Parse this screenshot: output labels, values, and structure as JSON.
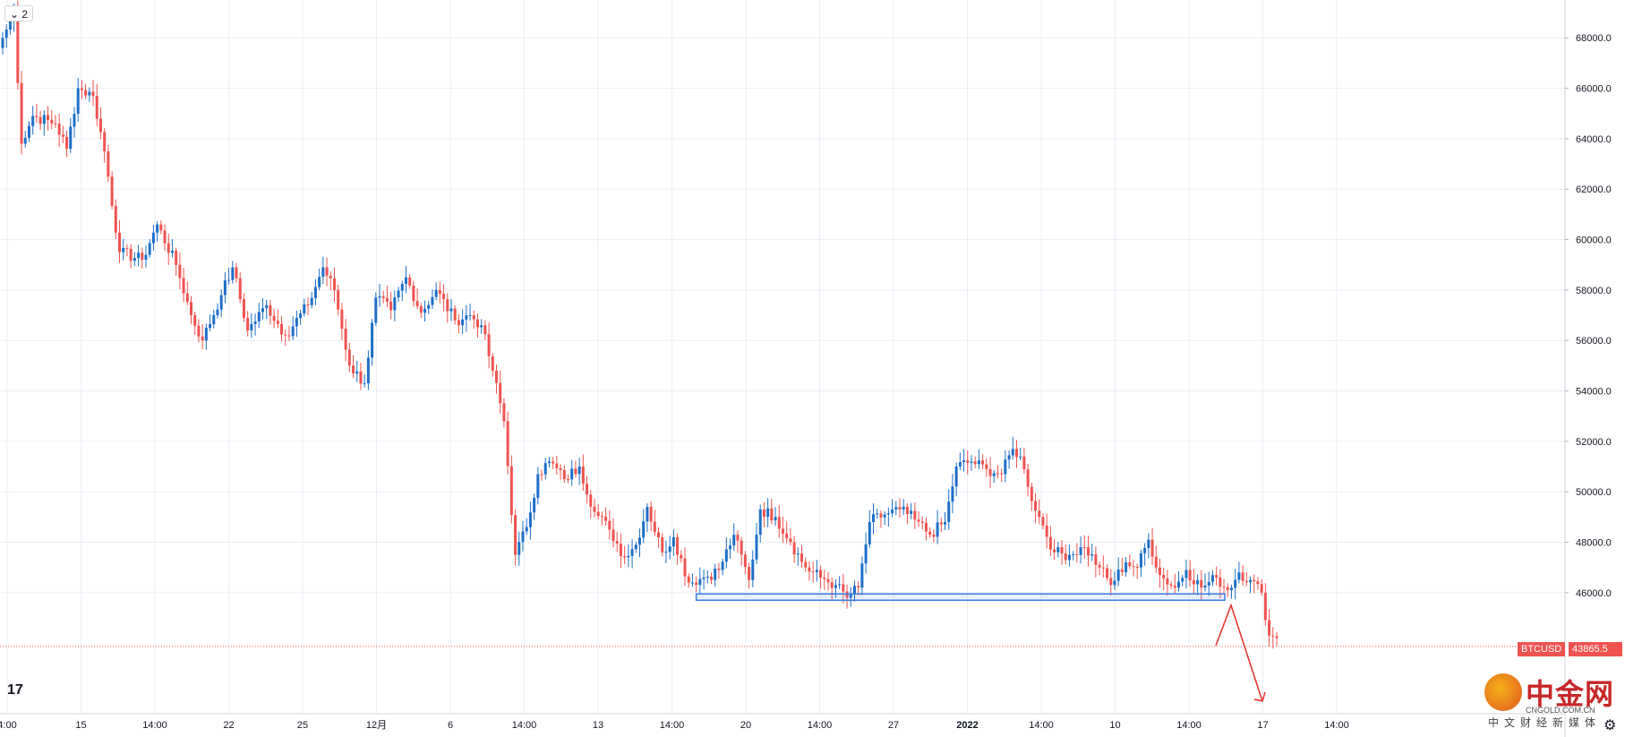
{
  "interval": {
    "label": "2",
    "icon": "chevron-down-icon"
  },
  "symbol_badge": {
    "label": "BTCUSD",
    "price": "43865.5"
  },
  "logo": {
    "text": "17",
    "name": "tradingview-logo-icon"
  },
  "watermark": {
    "main": "中金网",
    "sub": "CNGOLD.COM.CN",
    "sub2": "中文财经新媒体"
  },
  "colors": {
    "up": "#1e6fc8",
    "down": "#ef5350",
    "grid": "#e9eff6",
    "support": "#3b7ddd",
    "arrow": "#e53935"
  },
  "chart_data": {
    "type": "candlestick",
    "symbol": "BTCUSD",
    "last_price": 43865.5,
    "y_ticks": [
      "68000.0",
      "66000.0",
      "64000.0",
      "62000.0",
      "60000.0",
      "58000.0",
      "56000.0",
      "54000.0",
      "52000.0",
      "50000.0",
      "48000.0",
      "46000.0"
    ],
    "ylim": [
      41200,
      69500
    ],
    "x_ticks": [
      "4:00",
      "15",
      "14:00",
      "22",
      "25",
      "12月",
      "6",
      "14:00",
      "13",
      "14:00",
      "20",
      "14:00",
      "27",
      "2022",
      "14:00",
      "10",
      "14:00",
      "17",
      "14:00"
    ],
    "support_zone": [
      45700,
      45950
    ],
    "projection": [
      43900,
      45500,
      41700
    ],
    "anchors": [
      [
        0,
        68000
      ],
      [
        3,
        69000
      ],
      [
        5,
        63800
      ],
      [
        8,
        64900
      ],
      [
        14,
        64600
      ],
      [
        17,
        63600
      ],
      [
        20,
        66000
      ],
      [
        24,
        65700
      ],
      [
        27,
        63500
      ],
      [
        31,
        59500
      ],
      [
        37,
        59200
      ],
      [
        41,
        60600
      ],
      [
        46,
        59000
      ],
      [
        50,
        57000
      ],
      [
        53,
        56000
      ],
      [
        58,
        57800
      ],
      [
        61,
        58900
      ],
      [
        65,
        56400
      ],
      [
        70,
        57400
      ],
      [
        75,
        56200
      ],
      [
        81,
        57400
      ],
      [
        85,
        58900
      ],
      [
        88,
        58000
      ],
      [
        92,
        55000
      ],
      [
        96,
        54300
      ],
      [
        99,
        57700
      ],
      [
        103,
        57200
      ],
      [
        107,
        58500
      ],
      [
        111,
        57100
      ],
      [
        115,
        58000
      ],
      [
        120,
        56800
      ],
      [
        124,
        57000
      ],
      [
        127,
        56600
      ],
      [
        130,
        54800
      ],
      [
        133,
        52800
      ],
      [
        136,
        47500
      ],
      [
        139,
        48600
      ],
      [
        142,
        50700
      ],
      [
        145,
        51200
      ],
      [
        149,
        50500
      ],
      [
        153,
        51000
      ],
      [
        157,
        49200
      ],
      [
        161,
        48500
      ],
      [
        165,
        47400
      ],
      [
        168,
        47900
      ],
      [
        171,
        49400
      ],
      [
        175,
        47600
      ],
      [
        178,
        48200
      ],
      [
        182,
        46400
      ],
      [
        186,
        46600
      ],
      [
        190,
        46900
      ],
      [
        194,
        48300
      ],
      [
        198,
        46500
      ],
      [
        201,
        49300
      ],
      [
        205,
        49000
      ],
      [
        209,
        48000
      ],
      [
        213,
        47000
      ],
      [
        217,
        46600
      ],
      [
        221,
        46300
      ],
      [
        224,
        45800
      ],
      [
        227,
        46200
      ],
      [
        230,
        48800
      ],
      [
        234,
        49100
      ],
      [
        238,
        49300
      ],
      [
        242,
        48900
      ],
      [
        246,
        48300
      ],
      [
        250,
        48800
      ],
      [
        253,
        51000
      ],
      [
        257,
        51200
      ],
      [
        261,
        50900
      ],
      [
        265,
        50700
      ],
      [
        268,
        51700
      ],
      [
        270,
        51400
      ],
      [
        272,
        50200
      ],
      [
        275,
        49000
      ],
      [
        279,
        47600
      ],
      [
        283,
        47500
      ],
      [
        287,
        47800
      ],
      [
        291,
        47000
      ],
      [
        294,
        46300
      ],
      [
        298,
        47200
      ],
      [
        301,
        47000
      ],
      [
        304,
        48100
      ],
      [
        307,
        46700
      ],
      [
        311,
        46200
      ],
      [
        314,
        46900
      ],
      [
        318,
        46200
      ],
      [
        322,
        46600
      ],
      [
        325,
        46100
      ],
      [
        328,
        46800
      ],
      [
        331,
        46500
      ],
      [
        334,
        46000
      ],
      [
        336,
        44300
      ],
      [
        338,
        44200
      ]
    ]
  }
}
